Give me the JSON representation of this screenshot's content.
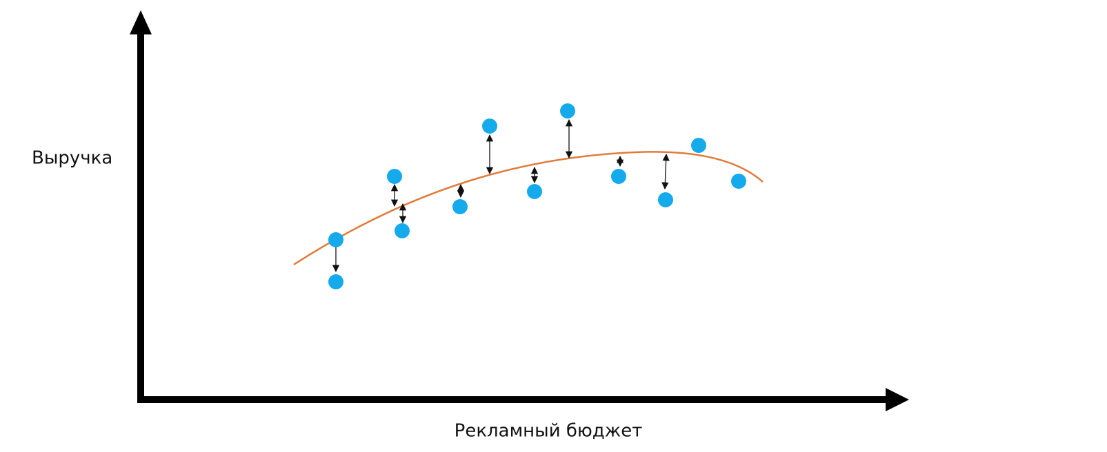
{
  "axes": {
    "y_label": "Выручка",
    "x_label": "Рекламный бюджет"
  }
}
